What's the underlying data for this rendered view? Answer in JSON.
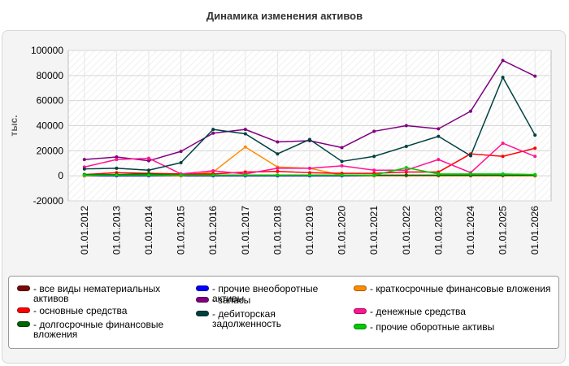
{
  "chart_data": {
    "type": "line",
    "title": "Динамика изменения активов",
    "ylabel": "тыс.",
    "xlabel": "",
    "ylim": [
      -20000,
      100000
    ],
    "yticks": [
      -20000,
      0,
      20000,
      40000,
      60000,
      80000,
      100000
    ],
    "grid": true,
    "legend_position": "bottom",
    "categories": [
      "01.01.2012",
      "01.01.2013",
      "01.01.2014",
      "01.01.2015",
      "01.01.2016",
      "01.01.2017",
      "01.01.2018",
      "01.01.2019",
      "01.01.2020",
      "01.01.2021",
      "01.01.2022",
      "01.01.2023",
      "01.01.2024",
      "01.01.2025",
      "01.01.2026"
    ],
    "series": [
      {
        "name": "- все виды нематериальных активов",
        "color": "#7a0a0a",
        "values": [
          0,
          0,
          0,
          0,
          0,
          0,
          0,
          0,
          0,
          0,
          0,
          0,
          0,
          0,
          0
        ]
      },
      {
        "name": "- прочие внеоборотные активы",
        "color": "#0000ff",
        "values": [
          0,
          0,
          0,
          0,
          0,
          0,
          0,
          0,
          0,
          0,
          0,
          0,
          0,
          0,
          0
        ]
      },
      {
        "name": "- краткосрочные финансовые вложения",
        "color": "#ff8c00",
        "values": [
          0,
          1000,
          500,
          0,
          3000,
          23000,
          7000,
          6000,
          500,
          0,
          0,
          0,
          0,
          0,
          0
        ]
      },
      {
        "name": "- основные средства",
        "color": "#ff0000",
        "values": [
          1000,
          2500,
          2000,
          1500,
          1500,
          3000,
          3500,
          2500,
          2000,
          2000,
          3000,
          3000,
          17500,
          15500,
          22000
        ]
      },
      {
        "name": "- запасы",
        "color": "#800080",
        "values": [
          13000,
          15000,
          12000,
          19500,
          34000,
          37000,
          27000,
          28000,
          22500,
          35500,
          40000,
          37500,
          51500,
          92000,
          79500
        ]
      },
      {
        "name": "- денежные средства",
        "color": "#ff1493",
        "values": [
          7000,
          13000,
          14000,
          1500,
          4000,
          1500,
          6000,
          6000,
          8000,
          4500,
          4500,
          13000,
          2500,
          26000,
          15500
        ]
      },
      {
        "name": "- долгосрочные финансовые вложения",
        "color": "#006400",
        "values": [
          1000,
          1000,
          1500,
          500,
          500,
          500,
          500,
          500,
          500,
          500,
          500,
          500,
          500,
          500,
          500
        ]
      },
      {
        "name": "- дебиторская задолженность",
        "color": "#004040",
        "values": [
          5500,
          6000,
          4500,
          10500,
          37000,
          33500,
          17500,
          29000,
          11500,
          15500,
          23500,
          31500,
          16000,
          78500,
          32500
        ]
      },
      {
        "name": "- прочие оборотные активы",
        "color": "#00cc00",
        "values": [
          500,
          500,
          500,
          500,
          500,
          500,
          500,
          500,
          500,
          500,
          6500,
          1500,
          1500,
          1500,
          1000
        ]
      }
    ]
  }
}
